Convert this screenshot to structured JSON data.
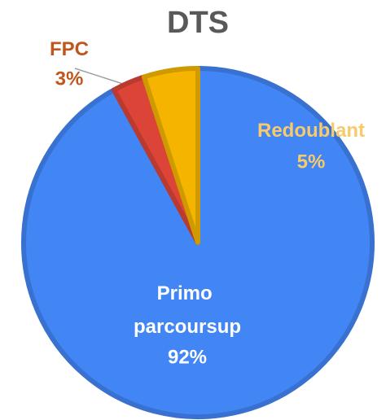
{
  "chart_data": {
    "type": "pie",
    "title": "DTS",
    "categories": [
      "Primo parcoursup",
      "FPC",
      "Redoublant"
    ],
    "values": [
      92,
      3,
      5
    ],
    "value_labels": [
      "92%",
      "3%",
      "5%"
    ],
    "colors": [
      "#4285f4",
      "#db4437",
      "#f4b400"
    ],
    "label_colors": [
      "#ffffff",
      "#c0561c",
      "#f7cb6b"
    ]
  }
}
